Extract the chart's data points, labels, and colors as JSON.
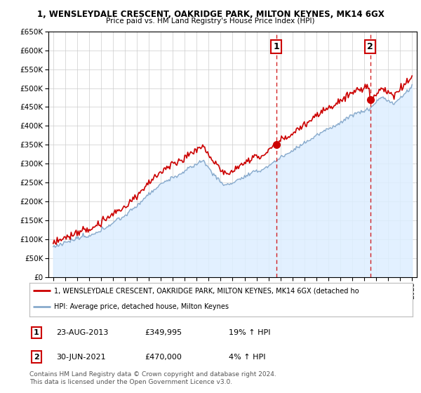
{
  "title": "1, WENSLEYDALE CRESCENT, OAKRIDGE PARK, MILTON KEYNES, MK14 6GX",
  "subtitle": "Price paid vs. HM Land Registry's House Price Index (HPI)",
  "hpi_color": "#aaccee",
  "hpi_fill_color": "#ddeeff",
  "price_color": "#cc0000",
  "marker1_date": "23-AUG-2013",
  "marker1_price": "£349,995",
  "marker1_hpi": "19% ↑ HPI",
  "marker1_year": 2013.64,
  "marker1_value": 349995,
  "marker2_date": "30-JUN-2021",
  "marker2_price": "£470,000",
  "marker2_hpi": "4% ↑ HPI",
  "marker2_year": 2021.5,
  "marker2_value": 470000,
  "legend_line1": "1, WENSLEYDALE CRESCENT, OAKRIDGE PARK, MILTON KEYNES, MK14 6GX (detached ho",
  "legend_line2": "HPI: Average price, detached house, Milton Keynes",
  "footer": "Contains HM Land Registry data © Crown copyright and database right 2024.\nThis data is licensed under the Open Government Licence v3.0.",
  "grid_color": "#cccccc",
  "ylim": [
    0,
    650000
  ],
  "xlim_start": 1994.6,
  "xlim_end": 2025.4
}
